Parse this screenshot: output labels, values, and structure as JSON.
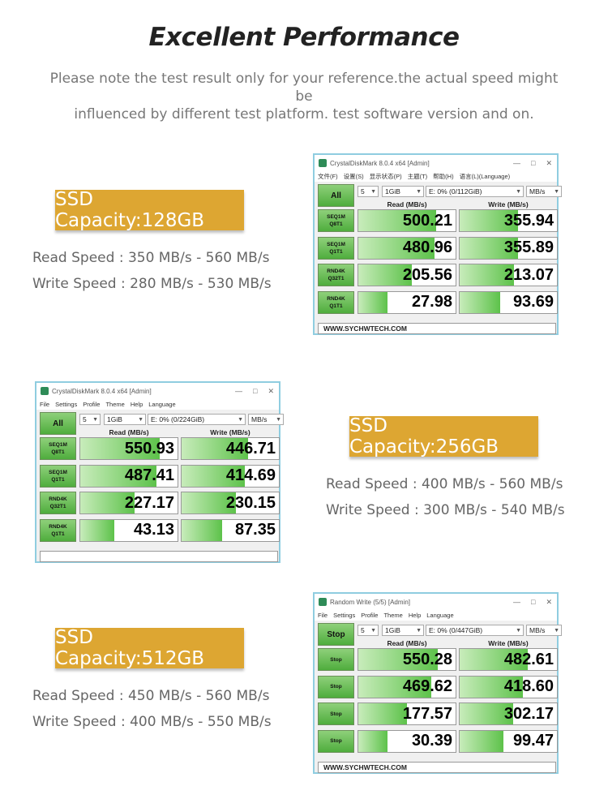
{
  "headline": "Excellent Performance",
  "note": {
    "line1": "Please note the test result only for your reference.the actual speed might be",
    "line2": "influenced by different test platform. test software version and on."
  },
  "colors": {
    "label_bg": "#dda632",
    "bar_green": "#5dc24a",
    "window_border": "#8fcde0"
  },
  "sections": [
    {
      "capacity": "SSD Capacity:128GB",
      "read_speed": "Read Speed : 350 MB/s - 560 MB/s",
      "write_speed": "Write Speed : 280 MB/s - 530 MB/s",
      "window": {
        "title": "CrystalDiskMark 8.0.4 x64 [Admin]",
        "menu": [
          "文件(F)",
          "设置(S)",
          "显示状态(P)",
          "主题(T)",
          "帮助(H)",
          "语言(L)(Language)"
        ],
        "main_button": "All",
        "count": "5",
        "size": "1GiB",
        "drive": "E: 0% (0/112GiB)",
        "unit": "MB/s",
        "read_header": "Read (MB/s)",
        "write_header": "Write (MB/s)",
        "rows": [
          {
            "label1": "SEQ1M",
            "label2": "Q8T1",
            "read": "500.21",
            "write": "355.94",
            "read_fill": 0.8,
            "write_fill": 0.6
          },
          {
            "label1": "SEQ1M",
            "label2": "Q1T1",
            "read": "480.96",
            "write": "355.89",
            "read_fill": 0.78,
            "write_fill": 0.6
          },
          {
            "label1": "RND4K",
            "label2": "Q32T1",
            "read": "205.56",
            "write": "213.07",
            "read_fill": 0.55,
            "write_fill": 0.56
          },
          {
            "label1": "RND4K",
            "label2": "Q1T1",
            "read": "27.98",
            "write": "93.69",
            "read_fill": 0.3,
            "write_fill": 0.42
          }
        ],
        "footer": "WWW.SYCHWTECH.COM"
      }
    },
    {
      "capacity": "SSD Capacity:256GB",
      "read_speed": "Read Speed : 400 MB/s - 560 MB/s",
      "write_speed": "Write Speed : 300 MB/s - 540 MB/s",
      "window": {
        "title": "CrystalDiskMark 8.0.4 x64 [Admin]",
        "menu": [
          "File",
          "Settings",
          "Profile",
          "Theme",
          "Help",
          "Language"
        ],
        "main_button": "All",
        "count": "5",
        "size": "1GiB",
        "drive": "E: 0% (0/224GiB)",
        "unit": "MB/s",
        "read_header": "Read (MB/s)",
        "write_header": "Write (MB/s)",
        "rows": [
          {
            "label1": "SEQ1M",
            "label2": "Q8T1",
            "read": "550.93",
            "write": "446.71",
            "read_fill": 0.82,
            "write_fill": 0.68
          },
          {
            "label1": "SEQ1M",
            "label2": "Q1T1",
            "read": "487.41",
            "write": "414.69",
            "read_fill": 0.78,
            "write_fill": 0.65
          },
          {
            "label1": "RND4K",
            "label2": "Q32T1",
            "read": "227.17",
            "write": "230.15",
            "read_fill": 0.56,
            "write_fill": 0.56
          },
          {
            "label1": "RND4K",
            "label2": "Q1T1",
            "read": "43.13",
            "write": "87.35",
            "read_fill": 0.35,
            "write_fill": 0.42
          }
        ],
        "footer": ""
      }
    },
    {
      "capacity": "SSD Capacity:512GB",
      "read_speed": "Read Speed : 450 MB/s - 560 MB/s",
      "write_speed": "Write Speed : 400 MB/s - 550 MB/s",
      "window": {
        "title": "Random Write (5/5) [Admin]",
        "menu": [
          "File",
          "Settings",
          "Profile",
          "Theme",
          "Help",
          "Language"
        ],
        "main_button": "Stop",
        "row_button": "Stop",
        "count": "5",
        "size": "1GiB",
        "drive": "E: 0% (0/447GiB)",
        "unit": "MB/s",
        "read_header": "Read (MB/s)",
        "write_header": "Write (MB/s)",
        "rows": [
          {
            "read": "550.28",
            "write": "482.61",
            "read_fill": 0.82,
            "write_fill": 0.7
          },
          {
            "read": "469.62",
            "write": "418.60",
            "read_fill": 0.75,
            "write_fill": 0.65
          },
          {
            "read": "177.57",
            "write": "302.17",
            "read_fill": 0.5,
            "write_fill": 0.55
          },
          {
            "read": "30.39",
            "write": "99.47",
            "read_fill": 0.3,
            "write_fill": 0.45
          }
        ],
        "footer": "WWW.SYCHWTECH.COM"
      }
    }
  ]
}
